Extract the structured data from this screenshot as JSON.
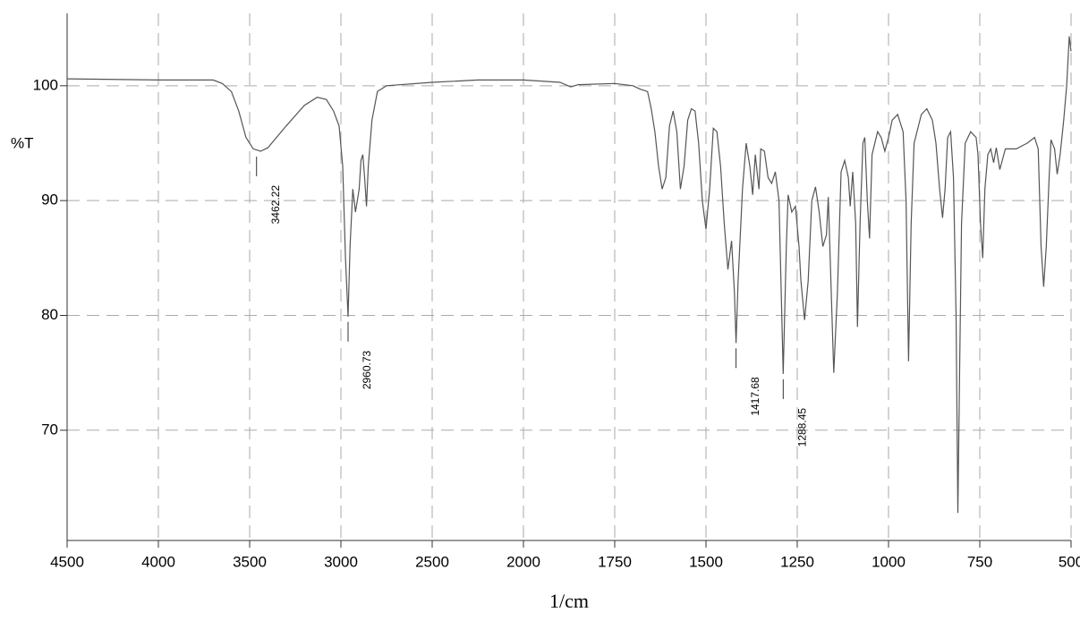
{
  "chart_data": {
    "type": "line",
    "y_label": "%T",
    "x_label": "1/cm",
    "x_scale": "tick-spaced",
    "xlim": [
      4500,
      500
    ],
    "xticks": [
      4500,
      4000,
      3500,
      3000,
      2500,
      2000,
      1750,
      1500,
      1250,
      1000,
      750,
      500
    ],
    "ylim": [
      60.4,
      106.3
    ],
    "yticks": [
      70,
      80,
      90,
      100
    ],
    "grid": true,
    "color": "#555555",
    "x": [
      4500,
      4000,
      3700,
      3650,
      3600,
      3560,
      3520,
      3480,
      3440,
      3400,
      3300,
      3200,
      3130,
      3080,
      3040,
      3010,
      2990,
      2975,
      2960.73,
      2950,
      2935,
      2920,
      2900,
      2890,
      2880,
      2870,
      2860,
      2850,
      2830,
      2800,
      2750,
      2500,
      2250,
      2000,
      1900,
      1870,
      1850,
      1750,
      1700,
      1680,
      1660,
      1650,
      1640,
      1630,
      1620,
      1610,
      1600,
      1590,
      1580,
      1570,
      1560,
      1550,
      1540,
      1530,
      1520,
      1510,
      1500,
      1490,
      1480,
      1470,
      1460,
      1450,
      1440,
      1430,
      1422,
      1417.68,
      1412,
      1400,
      1390,
      1380,
      1372,
      1365,
      1355,
      1350,
      1340,
      1330,
      1320,
      1310,
      1300,
      1288.45,
      1280,
      1275,
      1265,
      1255,
      1245,
      1240,
      1230,
      1220,
      1210,
      1200,
      1190,
      1180,
      1170,
      1165,
      1155,
      1150,
      1140,
      1130,
      1120,
      1110,
      1105,
      1098,
      1090,
      1085,
      1078,
      1070,
      1065,
      1058,
      1052,
      1045,
      1030,
      1020,
      1010,
      1000,
      990,
      975,
      960,
      952,
      945,
      938,
      930,
      910,
      895,
      880,
      870,
      860,
      852,
      845,
      838,
      830,
      822,
      815,
      810,
      805,
      800,
      790,
      775,
      760,
      755,
      748,
      742,
      736,
      728,
      720,
      712,
      705,
      695,
      680,
      650,
      620,
      600,
      590,
      582,
      575,
      568,
      560,
      555,
      545,
      538,
      530,
      520,
      512,
      505,
      500
    ],
    "values": [
      100.6,
      100.5,
      100.5,
      100.2,
      99.5,
      97.8,
      95.5,
      94.5,
      94.3,
      94.6,
      96.5,
      98.3,
      99.0,
      98.8,
      97.8,
      96.5,
      93,
      85,
      79.9,
      86,
      91,
      89,
      91,
      93.5,
      94,
      92,
      89.5,
      93,
      97,
      99.5,
      100,
      100.3,
      100.5,
      100.5,
      100.3,
      99.9,
      100.1,
      100.2,
      100.0,
      99.7,
      99.5,
      98,
      96,
      93,
      91,
      92,
      96.5,
      97.8,
      96,
      91,
      93,
      97,
      98,
      97.8,
      95,
      90,
      87.5,
      91,
      96.3,
      96,
      93,
      88,
      84,
      86.5,
      82,
      77.6,
      83,
      91,
      95,
      93,
      90.5,
      94,
      91,
      94.5,
      94.3,
      92,
      91.5,
      92.5,
      90,
      74.9,
      86,
      90.5,
      89,
      89.5,
      86,
      83,
      79.6,
      83,
      90,
      91.2,
      89,
      86,
      87,
      90.3,
      80,
      75,
      82,
      92.5,
      93.5,
      92,
      89.5,
      92.5,
      88,
      79,
      88,
      95,
      95.5,
      90,
      86.7,
      94,
      96,
      95.5,
      94.3,
      95.5,
      97,
      97.5,
      96,
      90,
      76,
      88,
      95,
      97.5,
      98,
      97,
      95,
      91,
      88.5,
      91,
      95.5,
      96,
      92,
      80,
      62.8,
      76,
      88,
      95,
      96,
      95.5,
      94,
      88,
      85,
      91,
      94,
      94.5,
      93.3,
      94.6,
      92.7,
      94.5,
      94.5,
      95,
      95.5,
      94.5,
      86,
      82.5,
      86,
      92,
      95.3,
      94.5,
      92.3,
      94,
      97,
      100,
      104.3,
      103
    ],
    "peaks": [
      {
        "x": 3462.22,
        "y": 94.3
      },
      {
        "x": 2960.73,
        "y": 79.9
      },
      {
        "x": 1417.68,
        "y": 77.6
      },
      {
        "x": 1288.45,
        "y": 74.9
      }
    ]
  }
}
